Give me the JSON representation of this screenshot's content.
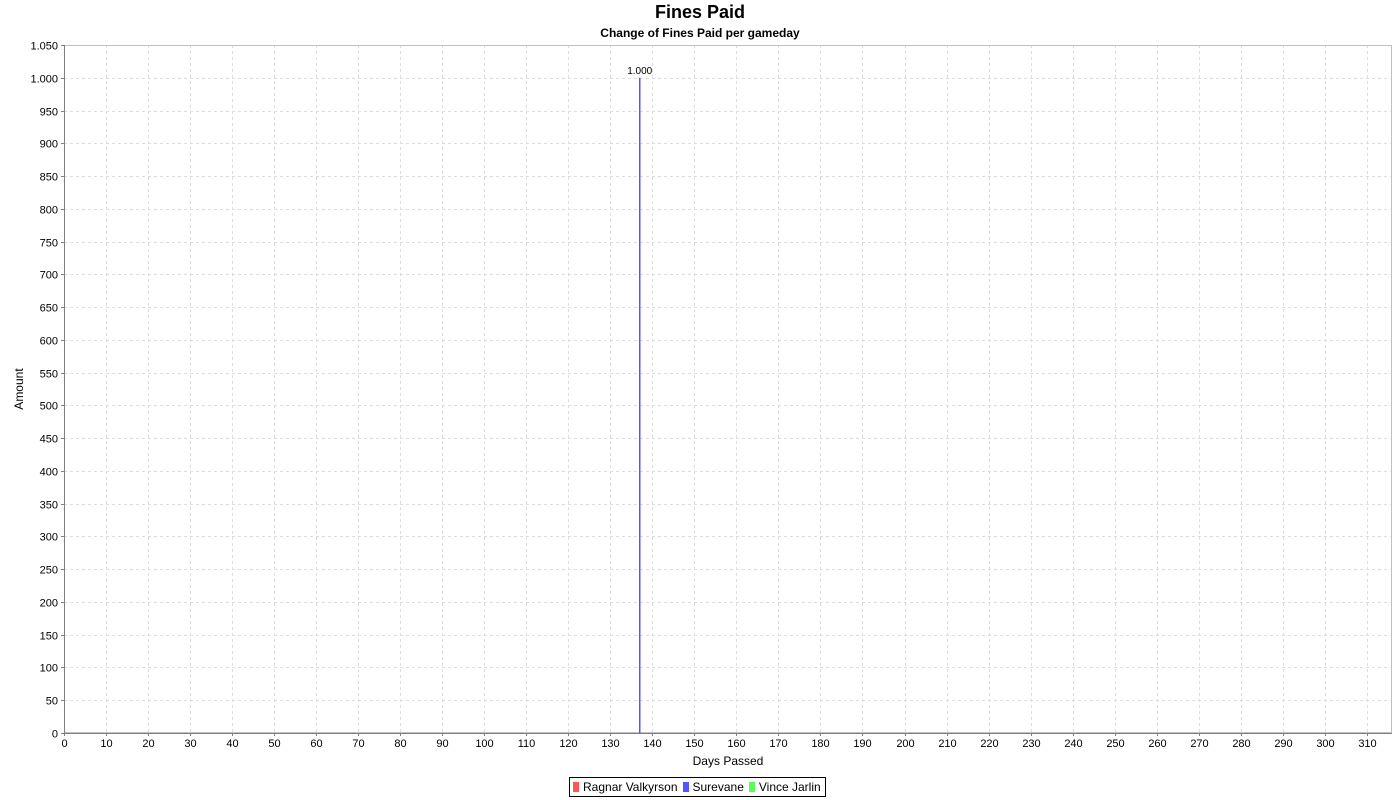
{
  "chart_data": {
    "type": "bar",
    "title": "Fines Paid",
    "subtitle": "Change of Fines Paid per gameday",
    "xlabel": "Days Passed",
    "ylabel": "Amount",
    "xlim": [
      0,
      316
    ],
    "ylim": [
      0,
      1050
    ],
    "x_ticks": [
      0,
      10,
      20,
      30,
      40,
      50,
      60,
      70,
      80,
      90,
      100,
      110,
      120,
      130,
      140,
      150,
      160,
      170,
      180,
      190,
      200,
      210,
      220,
      230,
      240,
      250,
      260,
      270,
      280,
      290,
      300,
      310
    ],
    "y_ticks": [
      0,
      50,
      100,
      150,
      200,
      250,
      300,
      350,
      400,
      450,
      500,
      550,
      600,
      650,
      700,
      750,
      800,
      850,
      900,
      950,
      1000,
      1050
    ],
    "y_tick_labels": [
      "0",
      "50",
      "100",
      "150",
      "200",
      "250",
      "300",
      "350",
      "400",
      "450",
      "500",
      "550",
      "600",
      "650",
      "700",
      "750",
      "800",
      "850",
      "900",
      "950",
      "1.000",
      "1.050"
    ],
    "grid": true,
    "legend_position": "bottom",
    "series": [
      {
        "name": "Ragnar Valkyrson",
        "color": "#ff5555",
        "points": []
      },
      {
        "name": "Surevane",
        "color": "#5555ff",
        "points": [
          {
            "x": 137,
            "y": 1000,
            "label": "1.000"
          }
        ]
      },
      {
        "name": "Vince Jarlin",
        "color": "#55ff55",
        "points": []
      }
    ]
  }
}
